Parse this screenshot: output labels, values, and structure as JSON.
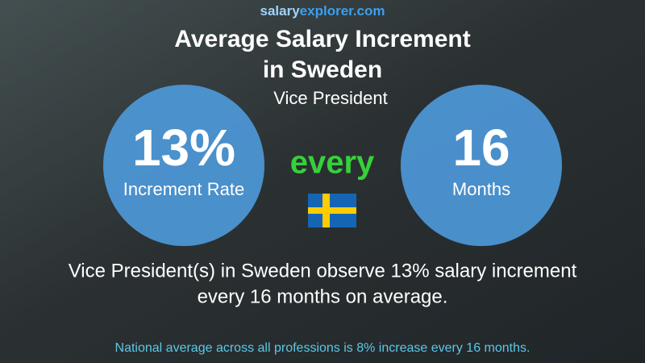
{
  "brand": {
    "part1": "salary",
    "part2": "explorer.com"
  },
  "title": {
    "line1": "Average Salary Increment",
    "line2": "in Sweden"
  },
  "subtitle": "Vice President",
  "left_circle": {
    "value": "13%",
    "label": "Increment Rate"
  },
  "middle": "every",
  "right_circle": {
    "value": "16",
    "label": "Months"
  },
  "summary": {
    "line1": "Vice President(s) in Sweden observe 13% salary increment",
    "line2": "every 16 months on average."
  },
  "footer": "National average across all professions is 8% increase every 16 months."
}
